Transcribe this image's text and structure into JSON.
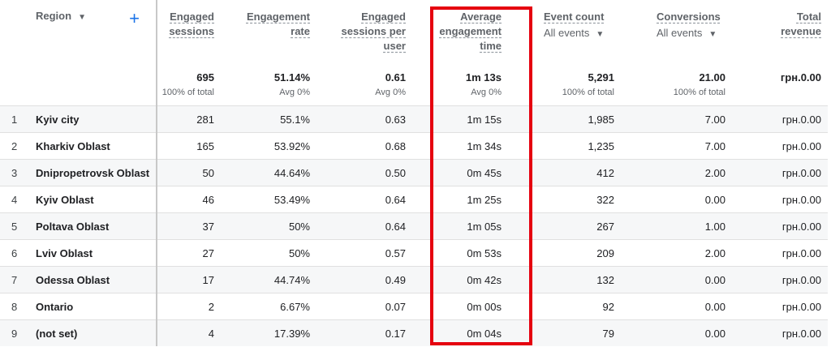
{
  "header": {
    "dimension": "Region",
    "columns": [
      {
        "label": "Engaged sessions"
      },
      {
        "label": "Engagement rate"
      },
      {
        "label": "Engaged sessions per user"
      },
      {
        "label": "Average engagement time"
      },
      {
        "label": "Event count",
        "filter": "All events"
      },
      {
        "label": "Conversions",
        "filter": "All events"
      },
      {
        "label": "Total revenue"
      }
    ]
  },
  "totals": [
    {
      "value": "695",
      "note": "100% of total"
    },
    {
      "value": "51.14%",
      "note": "Avg 0%"
    },
    {
      "value": "0.61",
      "note": "Avg 0%"
    },
    {
      "value": "1m 13s",
      "note": "Avg 0%"
    },
    {
      "value": "5,291",
      "note": "100% of total"
    },
    {
      "value": "21.00",
      "note": "100% of total"
    },
    {
      "value": "грн.0.00"
    }
  ],
  "rows": [
    {
      "index": "1",
      "region": "Kyiv city",
      "cells": [
        "281",
        "55.1%",
        "0.63",
        "1m 15s",
        "1,985",
        "7.00",
        "грн.0.00"
      ]
    },
    {
      "index": "2",
      "region": "Kharkiv Oblast",
      "cells": [
        "165",
        "53.92%",
        "0.68",
        "1m 34s",
        "1,235",
        "7.00",
        "грн.0.00"
      ]
    },
    {
      "index": "3",
      "region": "Dnipropetrovsk Oblast",
      "cells": [
        "50",
        "44.64%",
        "0.50",
        "0m 45s",
        "412",
        "2.00",
        "грн.0.00"
      ]
    },
    {
      "index": "4",
      "region": "Kyiv Oblast",
      "cells": [
        "46",
        "53.49%",
        "0.64",
        "1m 25s",
        "322",
        "0.00",
        "грн.0.00"
      ]
    },
    {
      "index": "5",
      "region": "Poltava Oblast",
      "cells": [
        "37",
        "50%",
        "0.64",
        "1m 05s",
        "267",
        "1.00",
        "грн.0.00"
      ]
    },
    {
      "index": "6",
      "region": "Lviv Oblast",
      "cells": [
        "27",
        "50%",
        "0.57",
        "0m 53s",
        "209",
        "2.00",
        "грн.0.00"
      ]
    },
    {
      "index": "7",
      "region": "Odessa Oblast",
      "cells": [
        "17",
        "44.74%",
        "0.49",
        "0m 42s",
        "132",
        "0.00",
        "грн.0.00"
      ]
    },
    {
      "index": "8",
      "region": "Ontario",
      "cells": [
        "2",
        "6.67%",
        "0.07",
        "0m 00s",
        "92",
        "0.00",
        "грн.0.00"
      ]
    },
    {
      "index": "9",
      "region": "(not set)",
      "cells": [
        "4",
        "17.39%",
        "0.17",
        "0m 04s",
        "79",
        "0.00",
        "грн.0.00"
      ]
    }
  ]
}
